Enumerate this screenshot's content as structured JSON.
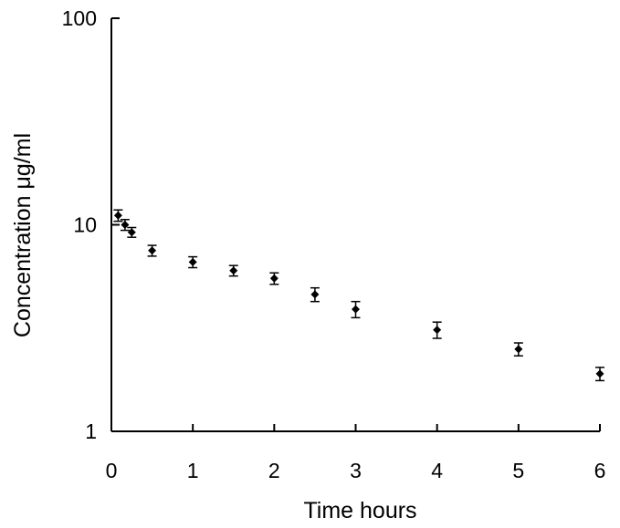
{
  "chart_data": {
    "type": "scatter",
    "title": "",
    "xlabel": "Time hours",
    "ylabel": "Concentration μg/ml",
    "x_ticks": [
      0,
      1,
      2,
      3,
      4,
      5,
      6
    ],
    "x_tick_labels": [
      "0",
      "1",
      "2",
      "3",
      "4",
      "5",
      "6"
    ],
    "y_scale": "log",
    "y_ticks": [
      1,
      10,
      100
    ],
    "y_tick_labels": [
      "1",
      "10",
      "100"
    ],
    "xlim": [
      0,
      6
    ],
    "ylim": [
      1,
      100
    ],
    "grid": false,
    "legend": "none",
    "marker_color": "#000000",
    "marker": "diamond",
    "series": [
      {
        "x": [
          0.083,
          0.167,
          0.25,
          0.5,
          1,
          1.5,
          2,
          2.5,
          3,
          4,
          5,
          6
        ],
        "y": [
          11.1,
          10.0,
          9.2,
          7.5,
          6.6,
          6.0,
          5.5,
          4.6,
          3.9,
          3.1,
          2.5,
          1.9
        ],
        "y_err": [
          0.7,
          0.6,
          0.5,
          0.45,
          0.4,
          0.35,
          0.35,
          0.35,
          0.35,
          0.28,
          0.18,
          0.14
        ]
      }
    ]
  }
}
